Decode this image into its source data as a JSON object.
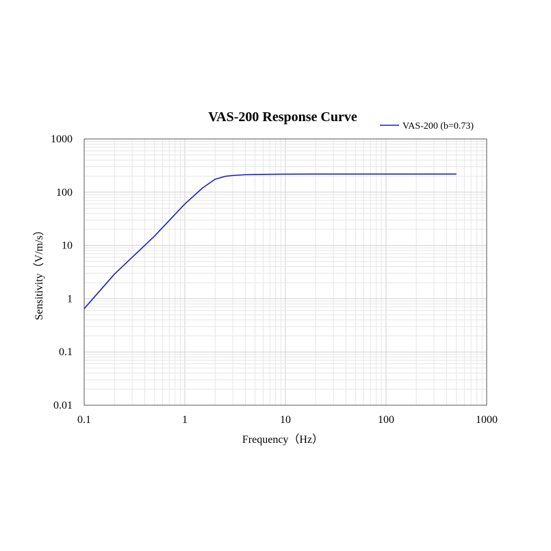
{
  "chart_data": {
    "type": "line",
    "title": "VAS-200 Response Curve",
    "xlabel": "Frequency（Hz）",
    "ylabel": "Sensitivity（V/m/s）",
    "x_scale": "log",
    "y_scale": "log",
    "xlim": [
      0.1,
      1000
    ],
    "ylim": [
      0.01,
      1000
    ],
    "x_ticks": [
      0.1,
      1,
      10,
      100,
      1000
    ],
    "x_tick_labels": [
      "0.1",
      "1",
      "10",
      "100",
      "1000"
    ],
    "y_ticks": [
      0.01,
      0.1,
      1,
      10,
      100,
      1000
    ],
    "y_tick_labels": [
      "0.01",
      "0.1",
      "1",
      "10",
      "100",
      "1000"
    ],
    "grid": true,
    "legend_position": "top-right",
    "series": [
      {
        "name": "VAS-200 (b=0.73)",
        "color": "#1c1cc8",
        "x": [
          0.1,
          0.2,
          0.5,
          1,
          1.5,
          2,
          2.5,
          3,
          4,
          5,
          10,
          20,
          50,
          100,
          200,
          500
        ],
        "y": [
          0.65,
          2.9,
          15,
          60,
          120,
          175,
          198,
          206,
          213,
          215,
          218,
          219,
          219,
          219,
          219,
          219
        ]
      }
    ]
  }
}
